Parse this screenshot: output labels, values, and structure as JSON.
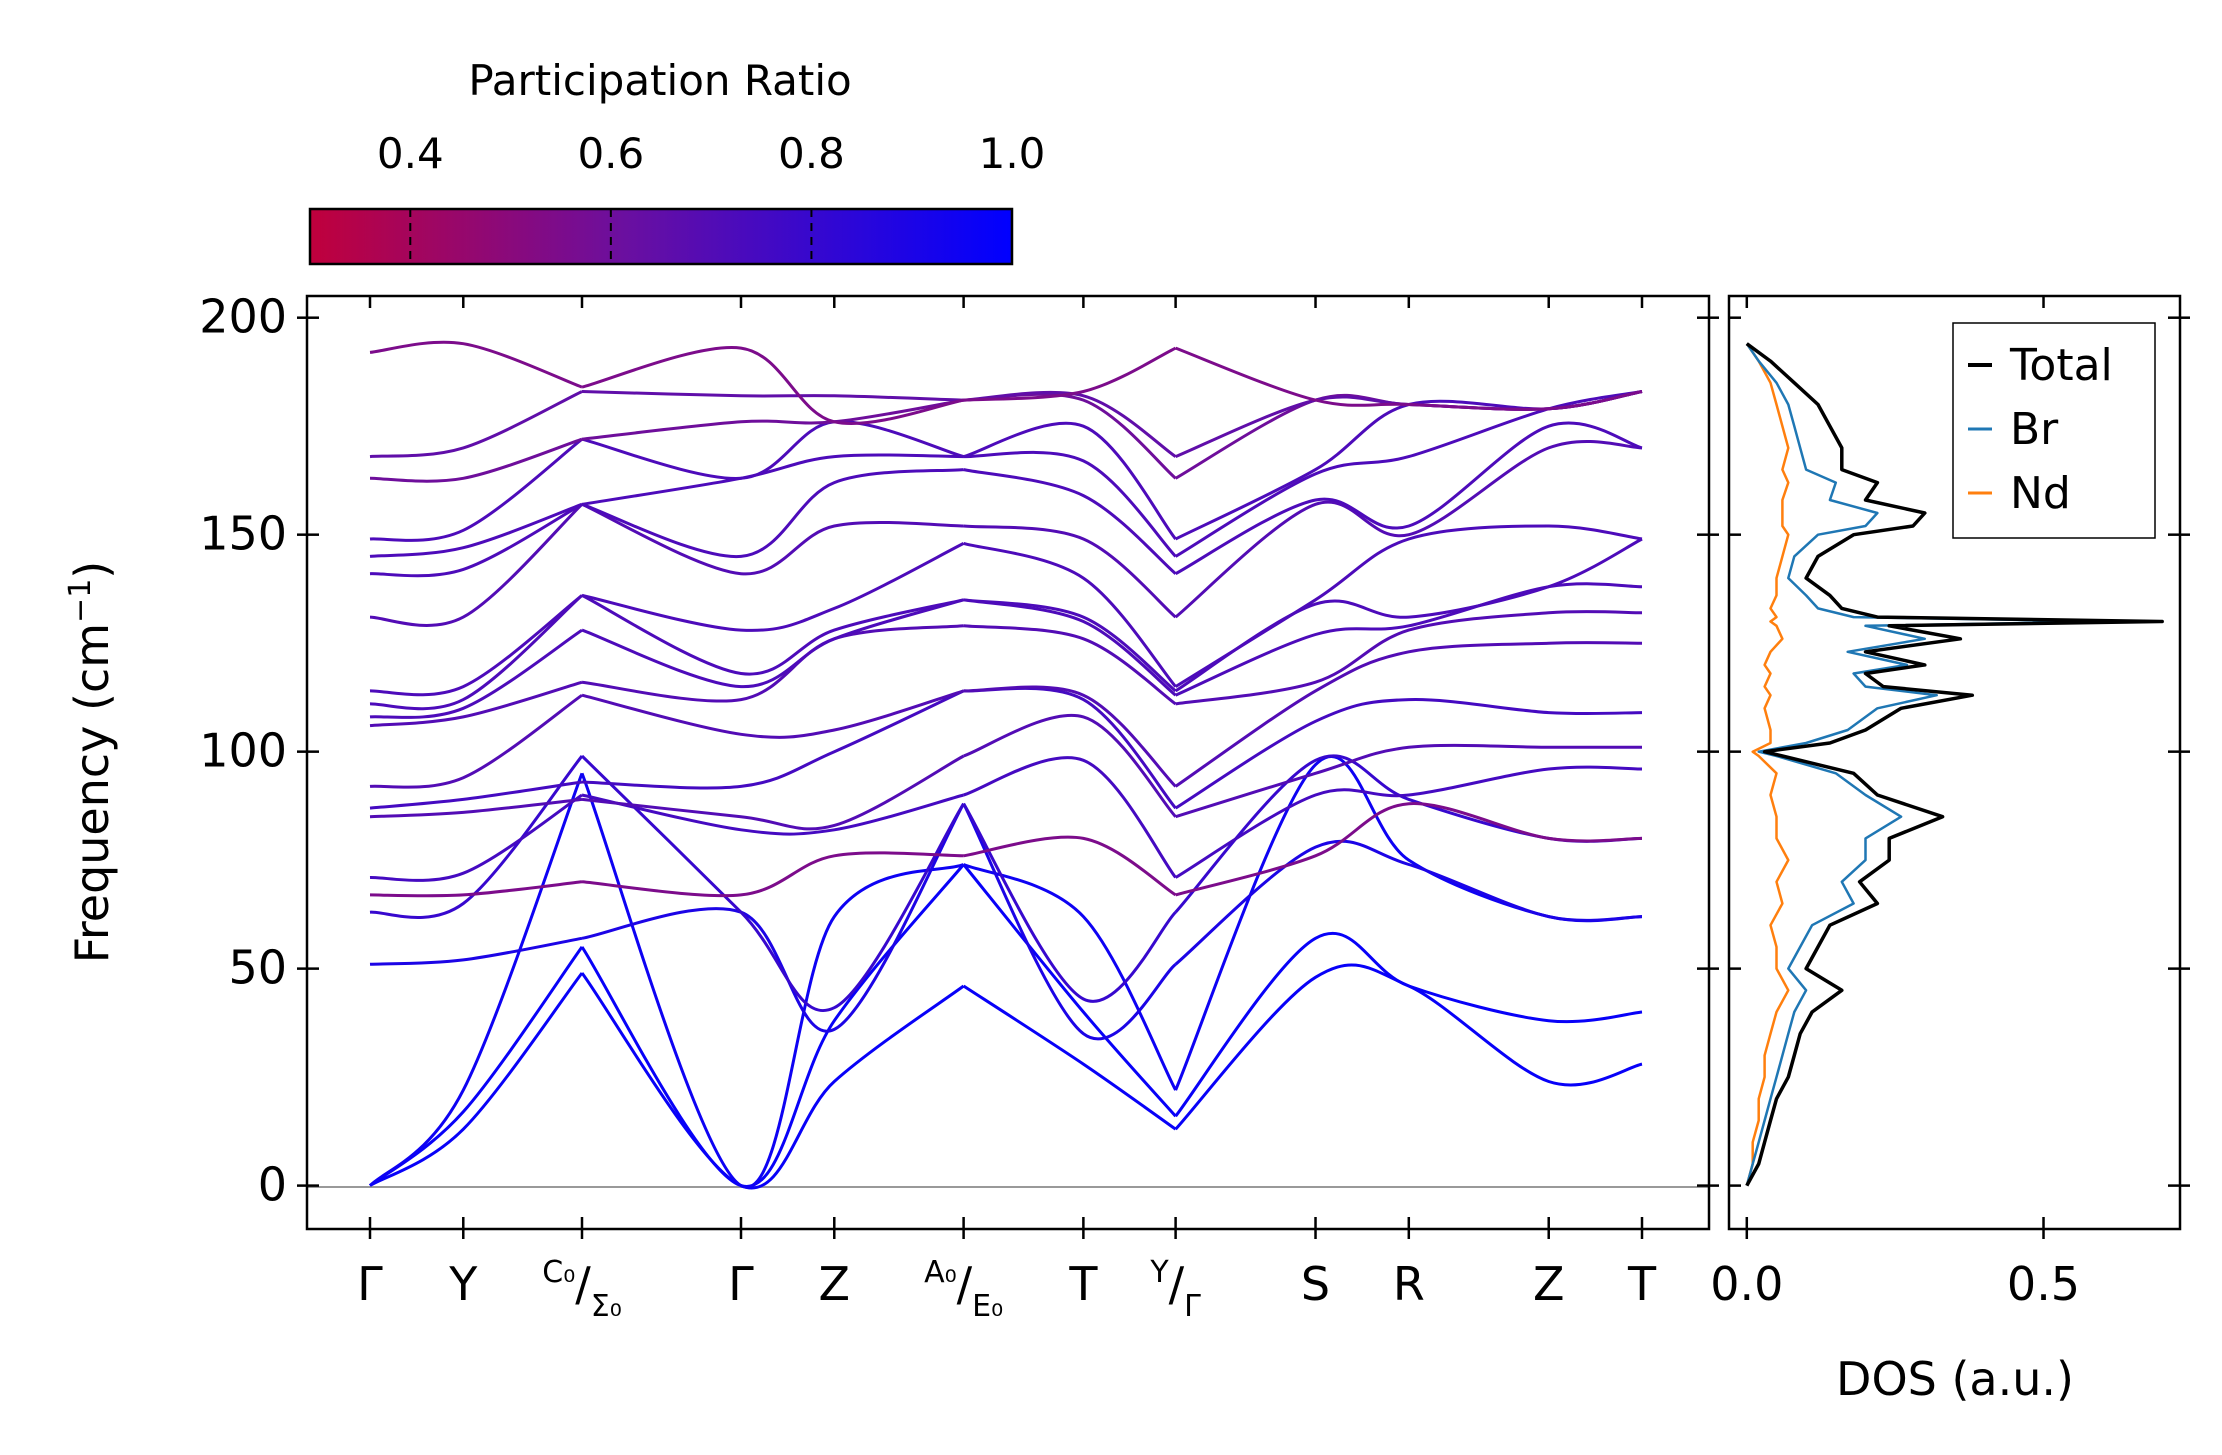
{
  "chart_data": [
    {
      "type": "line",
      "title": "",
      "ylabel": "Frequency (cm⁻¹)",
      "ylabel_parts": {
        "main": "Frequency (cm",
        "sup": "−1",
        "close": ")"
      },
      "xlabel": "",
      "ylim": [
        -10,
        205
      ],
      "yticks": [
        0,
        50,
        100,
        150,
        200
      ],
      "ytick_labels": [
        "0",
        "50",
        "100",
        "150",
        "200"
      ],
      "kpath": {
        "labels": [
          "Γ",
          "Y",
          "C₀/Σ₀",
          "Γ",
          "Z",
          "A₀/E₀",
          "T",
          "Y/Γ",
          "S",
          "R",
          "Z",
          "T"
        ],
        "segment_breaks_after": [
          2,
          5,
          7
        ],
        "point_positions": [
          0.0,
          0.088,
          0.2,
          0.35,
          0.438,
          0.56,
          0.673,
          0.76,
          0.892,
          0.98,
          1.112,
          1.2
        ],
        "composite_labels": [
          {
            "index": 2,
            "upper": "C₀",
            "lower": "Σ₀"
          },
          {
            "index": 5,
            "upper": "A₀",
            "lower": "E₀"
          },
          {
            "index": 7,
            "upper": "Y",
            "lower": "Γ"
          }
        ]
      },
      "colormap": {
        "title": "Participation Ratio",
        "range": [
          0.3,
          1.0
        ],
        "ticks": [
          0.4,
          0.6,
          0.8,
          1.0
        ],
        "tick_labels": [
          "0.4",
          "0.6",
          "0.8",
          "1.0"
        ],
        "low_color": "#c0003c",
        "mid_color": "#6a0fa0",
        "high_color": "#0000ff"
      },
      "series_description": "Phonon dispersion branches, frequencies in cm-1 sampled at k-path points",
      "series": [
        {
          "name": "branch-1",
          "values": [
            0,
            13,
            49,
            0,
            24,
            46,
            28,
            13,
            48,
            46,
            24,
            28
          ],
          "pr": 0.97
        },
        {
          "name": "branch-2",
          "values": [
            0,
            17,
            55,
            0,
            38,
            74,
            40,
            16,
            57,
            46,
            38,
            40
          ],
          "pr": 0.97
        },
        {
          "name": "branch-3",
          "values": [
            0,
            22,
            95,
            0,
            62,
            74,
            62,
            22,
            97,
            75,
            62,
            62
          ],
          "pr": 0.95
        },
        {
          "name": "branch-4",
          "values": [
            51,
            52,
            57,
            63,
            36,
            88,
            35,
            51,
            78,
            74,
            62,
            62
          ],
          "pr": 0.9
        },
        {
          "name": "branch-5",
          "values": [
            63,
            65,
            99,
            63,
            41,
            88,
            43,
            63,
            98,
            89,
            80,
            80
          ],
          "pr": 0.8
        },
        {
          "name": "branch-6",
          "values": [
            67,
            67,
            70,
            67,
            76,
            76,
            80,
            67,
            76,
            88,
            80,
            80
          ],
          "pr": 0.55
        },
        {
          "name": "branch-7",
          "values": [
            71,
            72,
            90,
            82,
            82,
            90,
            98,
            71,
            90,
            90,
            96,
            96
          ],
          "pr": 0.75
        },
        {
          "name": "branch-8",
          "values": [
            85,
            86,
            89,
            85,
            83,
            99,
            108,
            85,
            95,
            101,
            101,
            101
          ],
          "pr": 0.7
        },
        {
          "name": "branch-9",
          "values": [
            87,
            89,
            93,
            92,
            100,
            114,
            112,
            87,
            107,
            112,
            109,
            109
          ],
          "pr": 0.75
        },
        {
          "name": "branch-10",
          "values": [
            92,
            94,
            113,
            104,
            105,
            114,
            113,
            92,
            114,
            123,
            125,
            125
          ],
          "pr": 0.7
        },
        {
          "name": "branch-11",
          "values": [
            106,
            108,
            116,
            112,
            126,
            129,
            126,
            111,
            116,
            128,
            132,
            132
          ],
          "pr": 0.7
        },
        {
          "name": "branch-12",
          "values": [
            108,
            110,
            128,
            115,
            126,
            135,
            130,
            113,
            127,
            129,
            138,
            138
          ],
          "pr": 0.72
        },
        {
          "name": "branch-13",
          "values": [
            111,
            112,
            136,
            118,
            128,
            135,
            131,
            114,
            134,
            131,
            138,
            149
          ],
          "pr": 0.72
        },
        {
          "name": "branch-14",
          "values": [
            114,
            115,
            136,
            128,
            133,
            148,
            140,
            115,
            135,
            149,
            152,
            149
          ],
          "pr": 0.72
        },
        {
          "name": "branch-15",
          "values": [
            131,
            131,
            157,
            141,
            152,
            152,
            149,
            131,
            157,
            150,
            170,
            170
          ],
          "pr": 0.7
        },
        {
          "name": "branch-16",
          "values": [
            141,
            142,
            157,
            145,
            162,
            165,
            159,
            141,
            158,
            152,
            175,
            170
          ],
          "pr": 0.72
        },
        {
          "name": "branch-17",
          "values": [
            145,
            147,
            157,
            163,
            168,
            168,
            167,
            145,
            164,
            168,
            179,
            183
          ],
          "pr": 0.72
        },
        {
          "name": "branch-18",
          "values": [
            149,
            151,
            172,
            163,
            176,
            168,
            175,
            149,
            165,
            180,
            179,
            183
          ],
          "pr": 0.72
        },
        {
          "name": "branch-19",
          "values": [
            163,
            163,
            172,
            176,
            176,
            181,
            181,
            163,
            181,
            180,
            179,
            183
          ],
          "pr": 0.6
        },
        {
          "name": "branch-20",
          "values": [
            168,
            170,
            183,
            182,
            182,
            181,
            182,
            168,
            181,
            180,
            179,
            183
          ],
          "pr": 0.65
        },
        {
          "name": "branch-21",
          "values": [
            192,
            194,
            184,
            193,
            176,
            181,
            183,
            193,
            181,
            180,
            179,
            183
          ],
          "pr": 0.55
        }
      ]
    },
    {
      "type": "line",
      "title": "",
      "xlabel": "DOS (a.u.)",
      "ylabel": "",
      "xlim": [
        -0.03,
        0.73
      ],
      "ylim": [
        -10,
        205
      ],
      "xticks": [
        0.0,
        0.5
      ],
      "xtick_labels": [
        "0.0",
        "0.5"
      ],
      "legend": {
        "placement": "top-right",
        "entries": [
          "Total",
          "Br",
          "Nd"
        ]
      },
      "colors": {
        "Total": "#000000",
        "Br": "#1f77b4",
        "Nd": "#ff7f0e"
      },
      "frequency": [
        0,
        5,
        10,
        15,
        20,
        25,
        30,
        35,
        40,
        45,
        50,
        55,
        60,
        65,
        70,
        75,
        80,
        85,
        90,
        95,
        99,
        100,
        102,
        105,
        110,
        113,
        115,
        118,
        120,
        123,
        126,
        129,
        130,
        131,
        133,
        136,
        140,
        145,
        150,
        152,
        155,
        158,
        162,
        165,
        170,
        175,
        180,
        185,
        190,
        194
      ],
      "series": [
        {
          "name": "Total",
          "values": [
            0.0,
            0.02,
            0.03,
            0.04,
            0.05,
            0.07,
            0.08,
            0.09,
            0.11,
            0.16,
            0.1,
            0.12,
            0.14,
            0.22,
            0.19,
            0.24,
            0.24,
            0.33,
            0.22,
            0.18,
            0.06,
            0.03,
            0.14,
            0.2,
            0.26,
            0.38,
            0.23,
            0.2,
            0.3,
            0.2,
            0.36,
            0.24,
            0.7,
            0.22,
            0.16,
            0.14,
            0.1,
            0.12,
            0.18,
            0.28,
            0.3,
            0.2,
            0.22,
            0.16,
            0.16,
            0.14,
            0.12,
            0.08,
            0.04,
            0.0
          ]
        },
        {
          "name": "Br",
          "values": [
            0.0,
            0.01,
            0.02,
            0.03,
            0.04,
            0.05,
            0.06,
            0.07,
            0.08,
            0.1,
            0.07,
            0.09,
            0.11,
            0.18,
            0.16,
            0.2,
            0.2,
            0.26,
            0.2,
            0.15,
            0.05,
            0.02,
            0.1,
            0.17,
            0.22,
            0.32,
            0.2,
            0.18,
            0.27,
            0.17,
            0.3,
            0.2,
            0.62,
            0.18,
            0.12,
            0.1,
            0.07,
            0.08,
            0.12,
            0.2,
            0.22,
            0.14,
            0.15,
            0.1,
            0.09,
            0.08,
            0.07,
            0.05,
            0.02,
            0.0
          ]
        },
        {
          "name": "Nd",
          "values": [
            0.0,
            0.01,
            0.01,
            0.02,
            0.02,
            0.03,
            0.03,
            0.04,
            0.05,
            0.07,
            0.05,
            0.05,
            0.04,
            0.06,
            0.05,
            0.07,
            0.05,
            0.05,
            0.04,
            0.05,
            0.02,
            0.01,
            0.04,
            0.04,
            0.03,
            0.04,
            0.03,
            0.04,
            0.03,
            0.04,
            0.06,
            0.05,
            0.04,
            0.05,
            0.04,
            0.05,
            0.05,
            0.06,
            0.07,
            0.06,
            0.06,
            0.06,
            0.07,
            0.06,
            0.07,
            0.06,
            0.05,
            0.04,
            0.02,
            0.0
          ]
        }
      ]
    }
  ]
}
